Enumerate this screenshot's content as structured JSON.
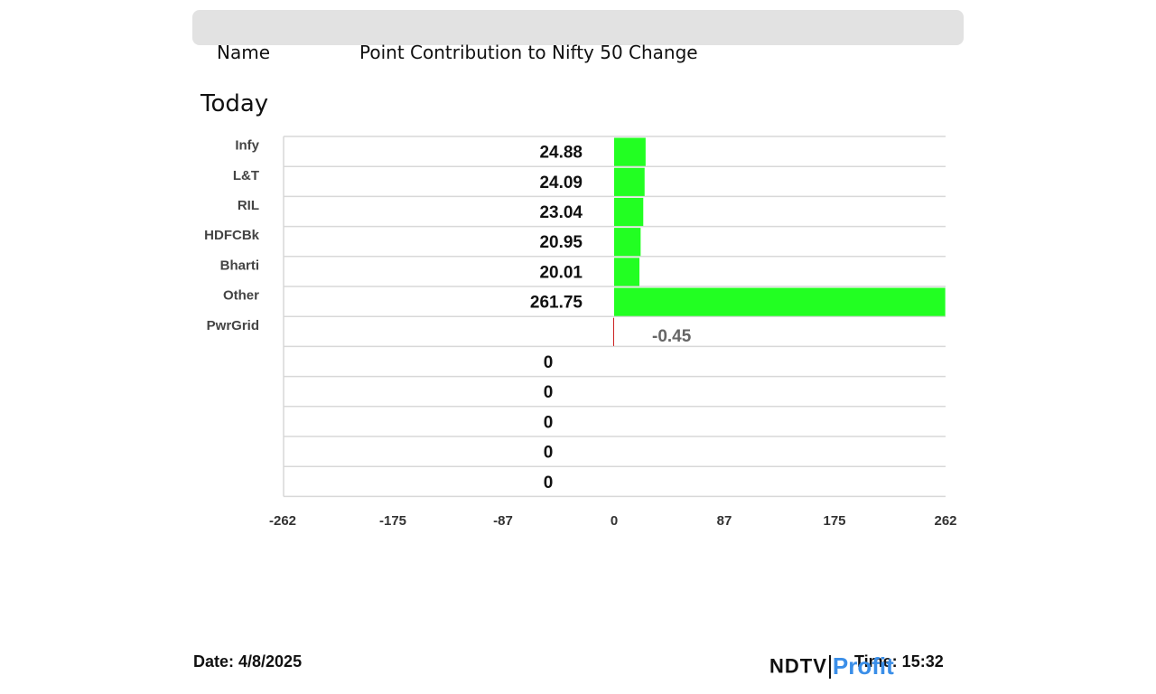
{
  "header": {
    "name_label": "Name",
    "title": "Point Contribution to Nifty 50 Change"
  },
  "period_label": "Today",
  "chart_data": {
    "type": "bar",
    "orientation": "horizontal",
    "categories": [
      "Infy",
      "L&T",
      "RIL",
      "HDFCBk",
      "Bharti",
      "Other",
      "PwrGrid",
      "",
      "",
      "",
      "",
      ""
    ],
    "values": [
      24.88,
      24.09,
      23.04,
      20.95,
      20.01,
      261.75,
      -0.45,
      0,
      0,
      0,
      0,
      0
    ],
    "value_labels": [
      "24.88",
      "24.09",
      "23.04",
      "20.95",
      "20.01",
      "261.75",
      "-0.45",
      "0",
      "0",
      "0",
      "0",
      "0"
    ],
    "xlim": [
      -262,
      262
    ],
    "xticks": [
      "-262",
      "-175",
      "-87",
      "0",
      "87",
      "175",
      "262"
    ],
    "grid": true,
    "colors": {
      "positive": "#22ff22",
      "negative": "#cc2222"
    }
  },
  "footer": {
    "date": "Date: 4/8/2025",
    "time": "Time: 15:32",
    "logo_ndtv": "NDTV",
    "logo_profit": "Profit"
  }
}
